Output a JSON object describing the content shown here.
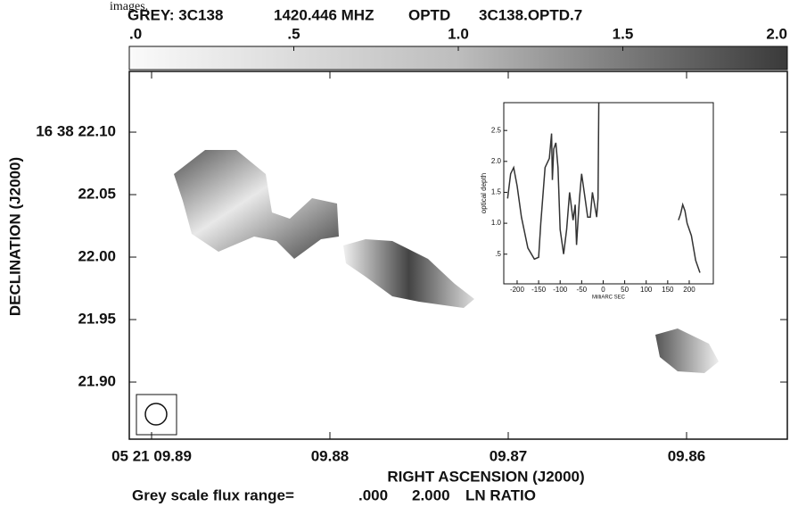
{
  "caption_fragment": "images.",
  "title_parts": [
    "GREY: 3C138",
    "1420.446 MHZ",
    "OPTD",
    "3C138.OPTD.7"
  ],
  "colorbar": {
    "lim": [
      0,
      2
    ],
    "ticks": [
      {
        "value": 0,
        "label": ".0"
      },
      {
        "value": 0.5,
        "label": ".5"
      },
      {
        "value": 1,
        "label": "1.0"
      },
      {
        "value": 1.5,
        "label": "1.5"
      },
      {
        "value": 2,
        "label": "2.0"
      }
    ]
  },
  "footer": {
    "label": "Grey scale flux range=",
    "min": ".000",
    "max": "2.000",
    "unit": "LN RATIO"
  },
  "chart_data": [
    {
      "type": "image",
      "xlabel": "RIGHT ASCENSION (J2000)",
      "ylabel": "DECLINATION (J2000)",
      "xlim": [
        9.89125,
        9.85435
      ],
      "xticks": [
        {
          "value": 9.89,
          "label": "05 21 09.89"
        },
        {
          "value": 9.88,
          "label": "09.88"
        },
        {
          "value": 9.87,
          "label": "09.87"
        },
        {
          "value": 9.86,
          "label": "09.86"
        }
      ],
      "ylim": [
        21.8543,
        22.1486
      ],
      "yticks": [
        {
          "value": 22.1,
          "label": "16 38 22.10"
        },
        {
          "value": 22.05,
          "label": "22.05"
        },
        {
          "value": 22.0,
          "label": "22.00"
        },
        {
          "value": 21.95,
          "label": "21.95"
        },
        {
          "value": 21.9,
          "label": "21.90"
        }
      ]
    },
    {
      "type": "line",
      "xlabel": "MilliARC SEC",
      "ylabel": "optical depth",
      "color": "#333333",
      "xlim": [
        -231,
        256
      ],
      "xticks": [
        -200,
        -150,
        -100,
        -50,
        0,
        50,
        100,
        150,
        200
      ],
      "ylim": [
        0.02,
        2.95
      ],
      "yticks": [
        {
          "value": 0.5,
          "label": ".5"
        },
        {
          "value": 1,
          "label": "1.0"
        },
        {
          "value": 1.5,
          "label": "1.5"
        },
        {
          "value": 2,
          "label": "2.0"
        },
        {
          "value": 2.5,
          "label": "2.5"
        }
      ],
      "x": [
        -222,
        -215,
        -208,
        -200,
        -190,
        -175,
        -160,
        -150,
        -145,
        -135,
        -125,
        -120,
        -118,
        -115,
        -110,
        -105,
        -100,
        -92,
        -85,
        -78,
        -70,
        -65,
        -62,
        -58,
        -55,
        -50,
        -42,
        -36,
        -30,
        -25,
        -20,
        -15,
        -12,
        -10,
        80,
        175,
        180,
        185,
        190,
        195,
        205,
        215,
        225
      ],
      "values": [
        1.4,
        1.8,
        1.9,
        1.6,
        1.1,
        0.6,
        0.42,
        0.45,
        1.0,
        1.9,
        2.05,
        2.45,
        1.7,
        2.2,
        2.3,
        1.9,
        0.9,
        0.5,
        0.9,
        1.5,
        1.05,
        1.3,
        0.65,
        1.1,
        1.4,
        1.8,
        1.4,
        1.1,
        1.1,
        1.5,
        1.3,
        1.1,
        1.4,
        3.0,
        null,
        1.05,
        1.15,
        1.3,
        1.2,
        1.0,
        0.8,
        0.4,
        0.2
      ]
    }
  ]
}
